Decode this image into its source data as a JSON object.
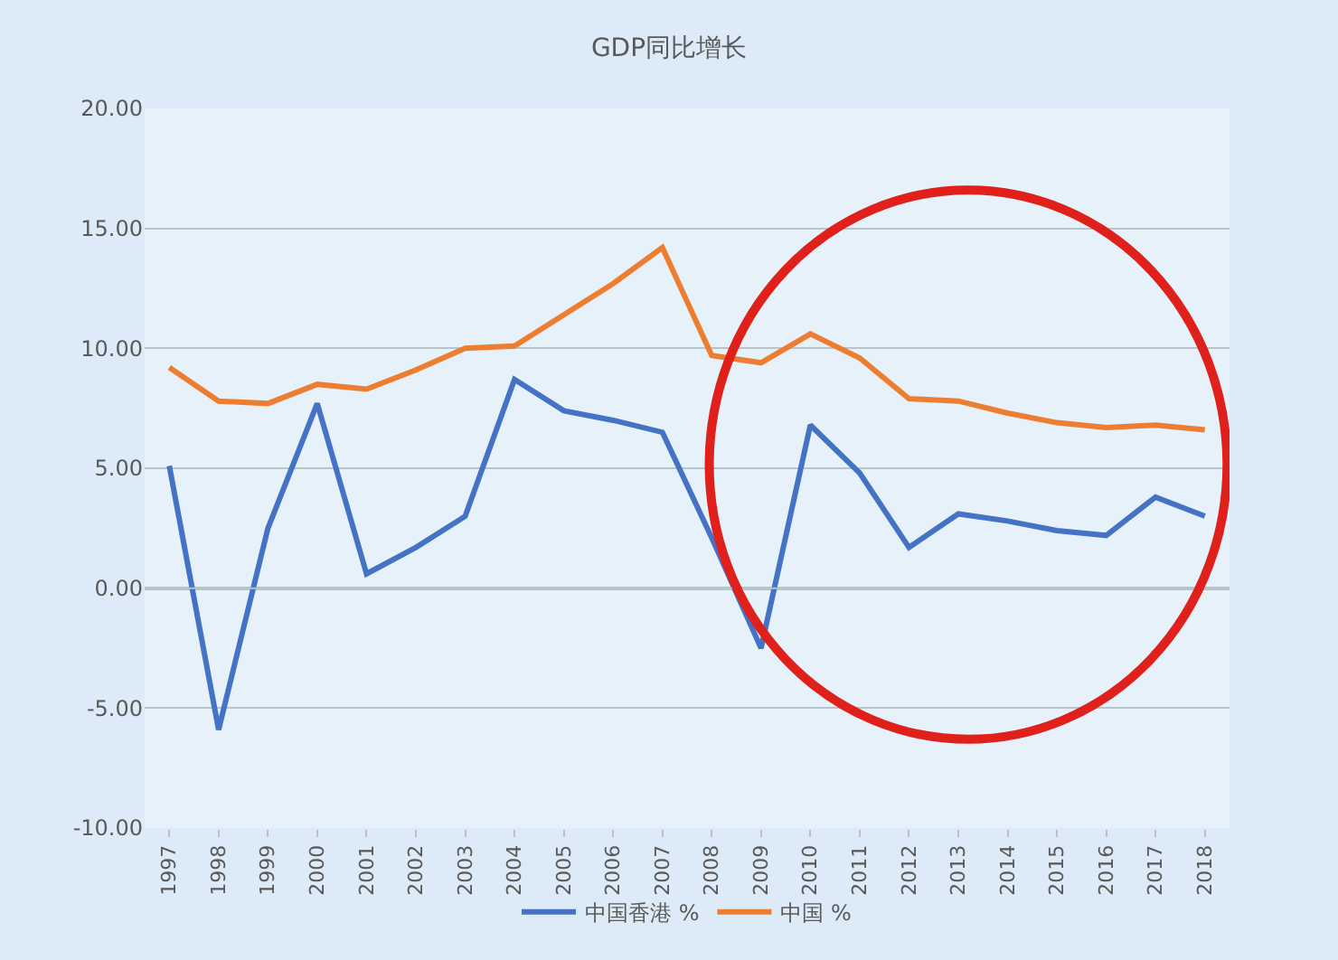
{
  "chart_data": {
    "type": "line",
    "title": "GDP同比增长",
    "categories": [
      "1997",
      "1998",
      "1999",
      "2000",
      "2001",
      "2002",
      "2003",
      "2004",
      "2005",
      "2006",
      "2007",
      "2008",
      "2009",
      "2010",
      "2011",
      "2012",
      "2013",
      "2014",
      "2015",
      "2016",
      "2017",
      "2018"
    ],
    "series": [
      {
        "name": "中国香港 %",
        "color": "#4472c4",
        "values": [
          5.1,
          -5.9,
          2.5,
          7.7,
          0.6,
          1.7,
          3.0,
          8.7,
          7.4,
          7.0,
          6.5,
          2.1,
          -2.5,
          6.8,
          4.8,
          1.7,
          3.1,
          2.8,
          2.4,
          2.2,
          3.8,
          3.0
        ]
      },
      {
        "name": "中国 %",
        "color": "#ed7d31",
        "values": [
          9.2,
          7.8,
          7.7,
          8.5,
          8.3,
          9.1,
          10.0,
          10.1,
          11.4,
          12.7,
          14.2,
          9.7,
          9.4,
          10.6,
          9.6,
          7.9,
          7.8,
          7.3,
          6.9,
          6.7,
          6.8,
          6.6
        ]
      }
    ],
    "ylim": [
      -10,
      20
    ],
    "yticks": [
      {
        "value": -10,
        "label": "-10.00"
      },
      {
        "value": -5,
        "label": "-5.00"
      },
      {
        "value": 0,
        "label": "0.00"
      },
      {
        "value": 5,
        "label": "5.00"
      },
      {
        "value": 10,
        "label": "10.00"
      },
      {
        "value": 15,
        "label": "15.00"
      },
      {
        "value": 20,
        "label": "20.00"
      }
    ],
    "grid": "y",
    "legend": "bottom",
    "marker": "none",
    "line_style": "solid"
  }
}
